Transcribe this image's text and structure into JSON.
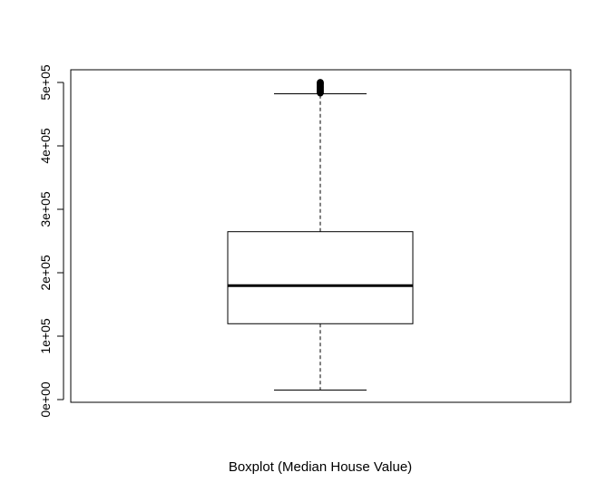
{
  "chart_data": {
    "type": "boxplot",
    "title": "",
    "xlabel": "Boxplot (Median House Value)",
    "ylabel": "",
    "ylim": [
      0,
      500000
    ],
    "yticks": [
      0,
      100000,
      200000,
      300000,
      400000,
      500000
    ],
    "ytick_labels": [
      "0e+00",
      "1e+05",
      "2e+05",
      "3e+05",
      "4e+05",
      "5e+05"
    ],
    "box": {
      "whisker_low": 14999,
      "q1": 119600,
      "median": 179700,
      "q3": 264725,
      "whisker_high": 482200
    },
    "outliers": [
      483300,
      484000,
      485000,
      486000,
      487000,
      488000,
      489000,
      490000,
      491000,
      492000,
      493000,
      494000,
      495000,
      496000,
      497000,
      498000,
      499000,
      500000,
      500001
    ],
    "grid": false
  }
}
